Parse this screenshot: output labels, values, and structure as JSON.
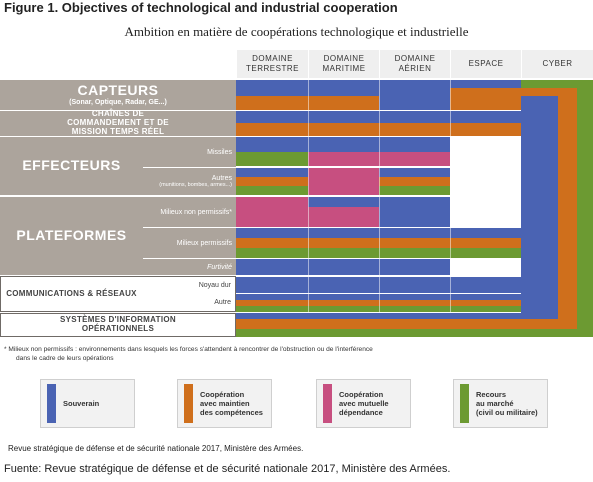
{
  "figure_title": "Figure 1. Objectives of technological and industrial cooperation",
  "chart_data": {
    "type": "table",
    "title": "Ambition en matière de coopérations technologique et industrielle",
    "columns": [
      "DOMAINE TERRESTRE",
      "DOMAINE MARITIME",
      "DOMAINE AÉRIEN",
      "ESPACE",
      "CYBER"
    ],
    "categories": [
      {
        "label": "CAPTEURS",
        "sublabel": "(Sonar, Optique, Radar, GE...)",
        "rows": [
          {
            "label": "",
            "stripes": [
              "blue",
              "orange"
            ]
          }
        ]
      },
      {
        "label": "CHAÎNES DE COMMANDEMENT ET DE MISSION TEMPS RÉEL",
        "rows": [
          {
            "label": "",
            "stripes": [
              "blue",
              "orange"
            ]
          }
        ]
      },
      {
        "label": "EFFECTEURS",
        "rows": [
          {
            "label": "Missiles",
            "sublabel": "",
            "stripes": [
              "blue",
              "pink",
              "green"
            ]
          },
          {
            "label": "Autres",
            "sublabel": "(munitions, bombes, armes...)",
            "stripes": [
              "blue",
              "orange",
              "green"
            ]
          }
        ]
      },
      {
        "label": "PLATEFORMES",
        "rows": [
          {
            "label": "Milieux non permissifs*",
            "sublabel": "",
            "stripes": [
              "blue",
              "pink"
            ]
          },
          {
            "label": "Milieux permissifs",
            "sublabel": "",
            "stripes": [
              "blue",
              "orange",
              "green"
            ]
          },
          {
            "label": "Furtivité",
            "sublabel": "",
            "stripes": [
              "blue"
            ]
          }
        ]
      },
      {
        "label": "COMMUNICATIONS & RÉSEAUX",
        "rows": [
          {
            "label": "Noyau dur",
            "sublabel": "",
            "stripes": [
              "blue"
            ]
          },
          {
            "label": "Autre",
            "sublabel": "",
            "stripes": [
              "blue",
              "orange",
              "green"
            ]
          }
        ]
      },
      {
        "label": "SYSTÈMES D'INFORMATION OPÉRATIONNELS",
        "rows": [
          {
            "label": "",
            "stripes": [
              "blue",
              "orange"
            ]
          }
        ]
      }
    ]
  },
  "footnote": {
    "line1": "* Milieux non permissifs : environnements dans lesquels les forces s'attendent à rencontrer de l'obstruction ou de l'interférence",
    "line2": "dans le cadre de leurs opérations"
  },
  "legend": [
    {
      "label_lines": [
        "Souverain"
      ],
      "color": "#4a63b3"
    },
    {
      "label_lines": [
        "Coopération",
        "avec maintien",
        "des compétences"
      ],
      "color": "#cf6f1c"
    },
    {
      "label_lines": [
        "Coopération",
        "avec mutuelle",
        "dépendance"
      ],
      "color": "#c74f80"
    },
    {
      "label_lines": [
        "Recours",
        "au marché",
        "(civil ou militaire)"
      ],
      "color": "#6c9a32"
    }
  ],
  "source_inner": "Revue stratégique de défense et de sécurité nationale 2017, Ministère des Armées.",
  "source_outer": "Fuente: Revue stratégique de défense et de sécurité nationale 2017, Ministère des Armées.",
  "colors": {
    "blue": "#4a63b3",
    "orange": "#cf6f1c",
    "pink": "#c74f80",
    "green": "#6c9a32",
    "row_grey": "#aca49c",
    "row_grey_dark": "#6f6a66"
  }
}
